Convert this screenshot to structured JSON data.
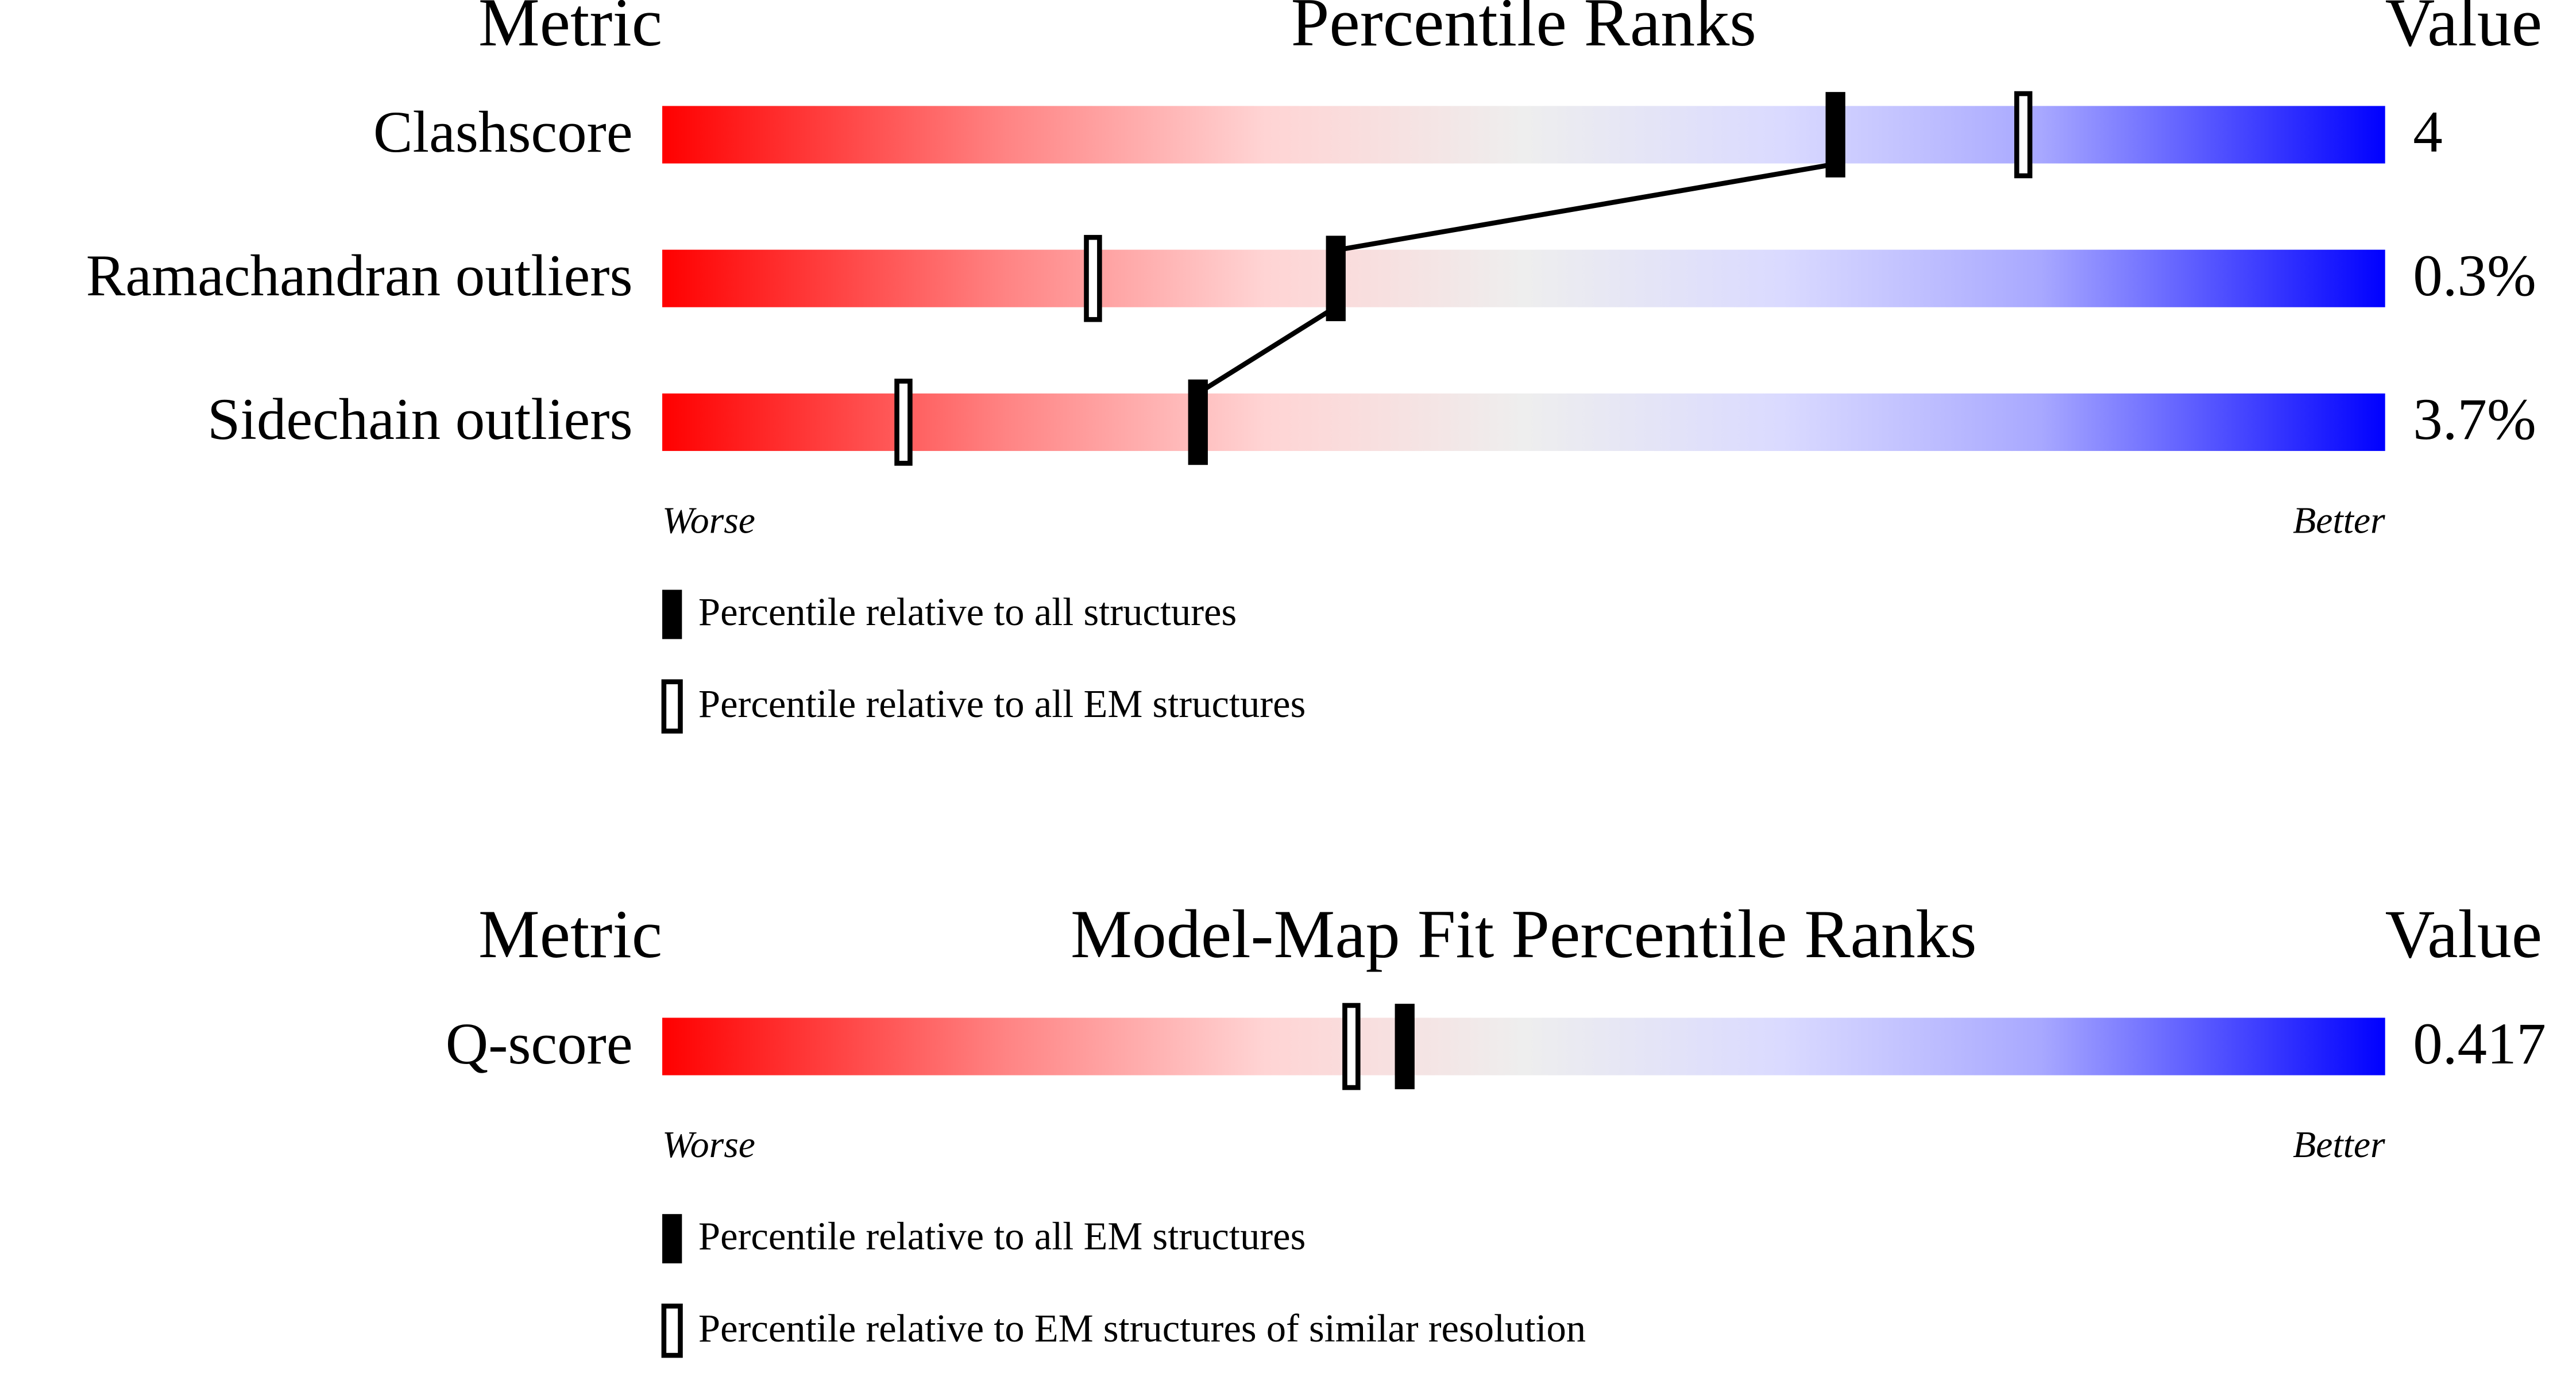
{
  "chart_data": [
    {
      "type": "percentile-slider",
      "header": {
        "metric": "Metric",
        "title": "Percentile Ranks",
        "value": "Value"
      },
      "categories": [
        "Clashscore",
        "Ramachandran outliers",
        "Sidechain outliers"
      ],
      "row_values": [
        "4",
        "0.3%",
        "3.7%"
      ],
      "xlim": [
        0,
        100
      ],
      "worse": "Worse",
      "better": "Better",
      "series": [
        {
          "name": "Percentile relative to all structures",
          "style": "filled",
          "connect": true,
          "values": [
            68,
            39,
            31
          ]
        },
        {
          "name": "Percentile relative to all EM structures",
          "style": "hollow",
          "connect": false,
          "values": [
            79,
            25,
            14
          ]
        }
      ]
    },
    {
      "type": "percentile-slider",
      "header": {
        "metric": "Metric",
        "title": "Model-Map Fit Percentile Ranks",
        "value": "Value"
      },
      "categories": [
        "Q-score"
      ],
      "row_values": [
        "0.417"
      ],
      "xlim": [
        0,
        100
      ],
      "worse": "Worse",
      "better": "Better",
      "series": [
        {
          "name": "Percentile relative to all EM structures",
          "style": "filled",
          "connect": true,
          "values": [
            43
          ]
        },
        {
          "name": "Percentile relative to EM structures of similar resolution",
          "style": "hollow",
          "connect": false,
          "values": [
            40
          ]
        }
      ]
    }
  ]
}
